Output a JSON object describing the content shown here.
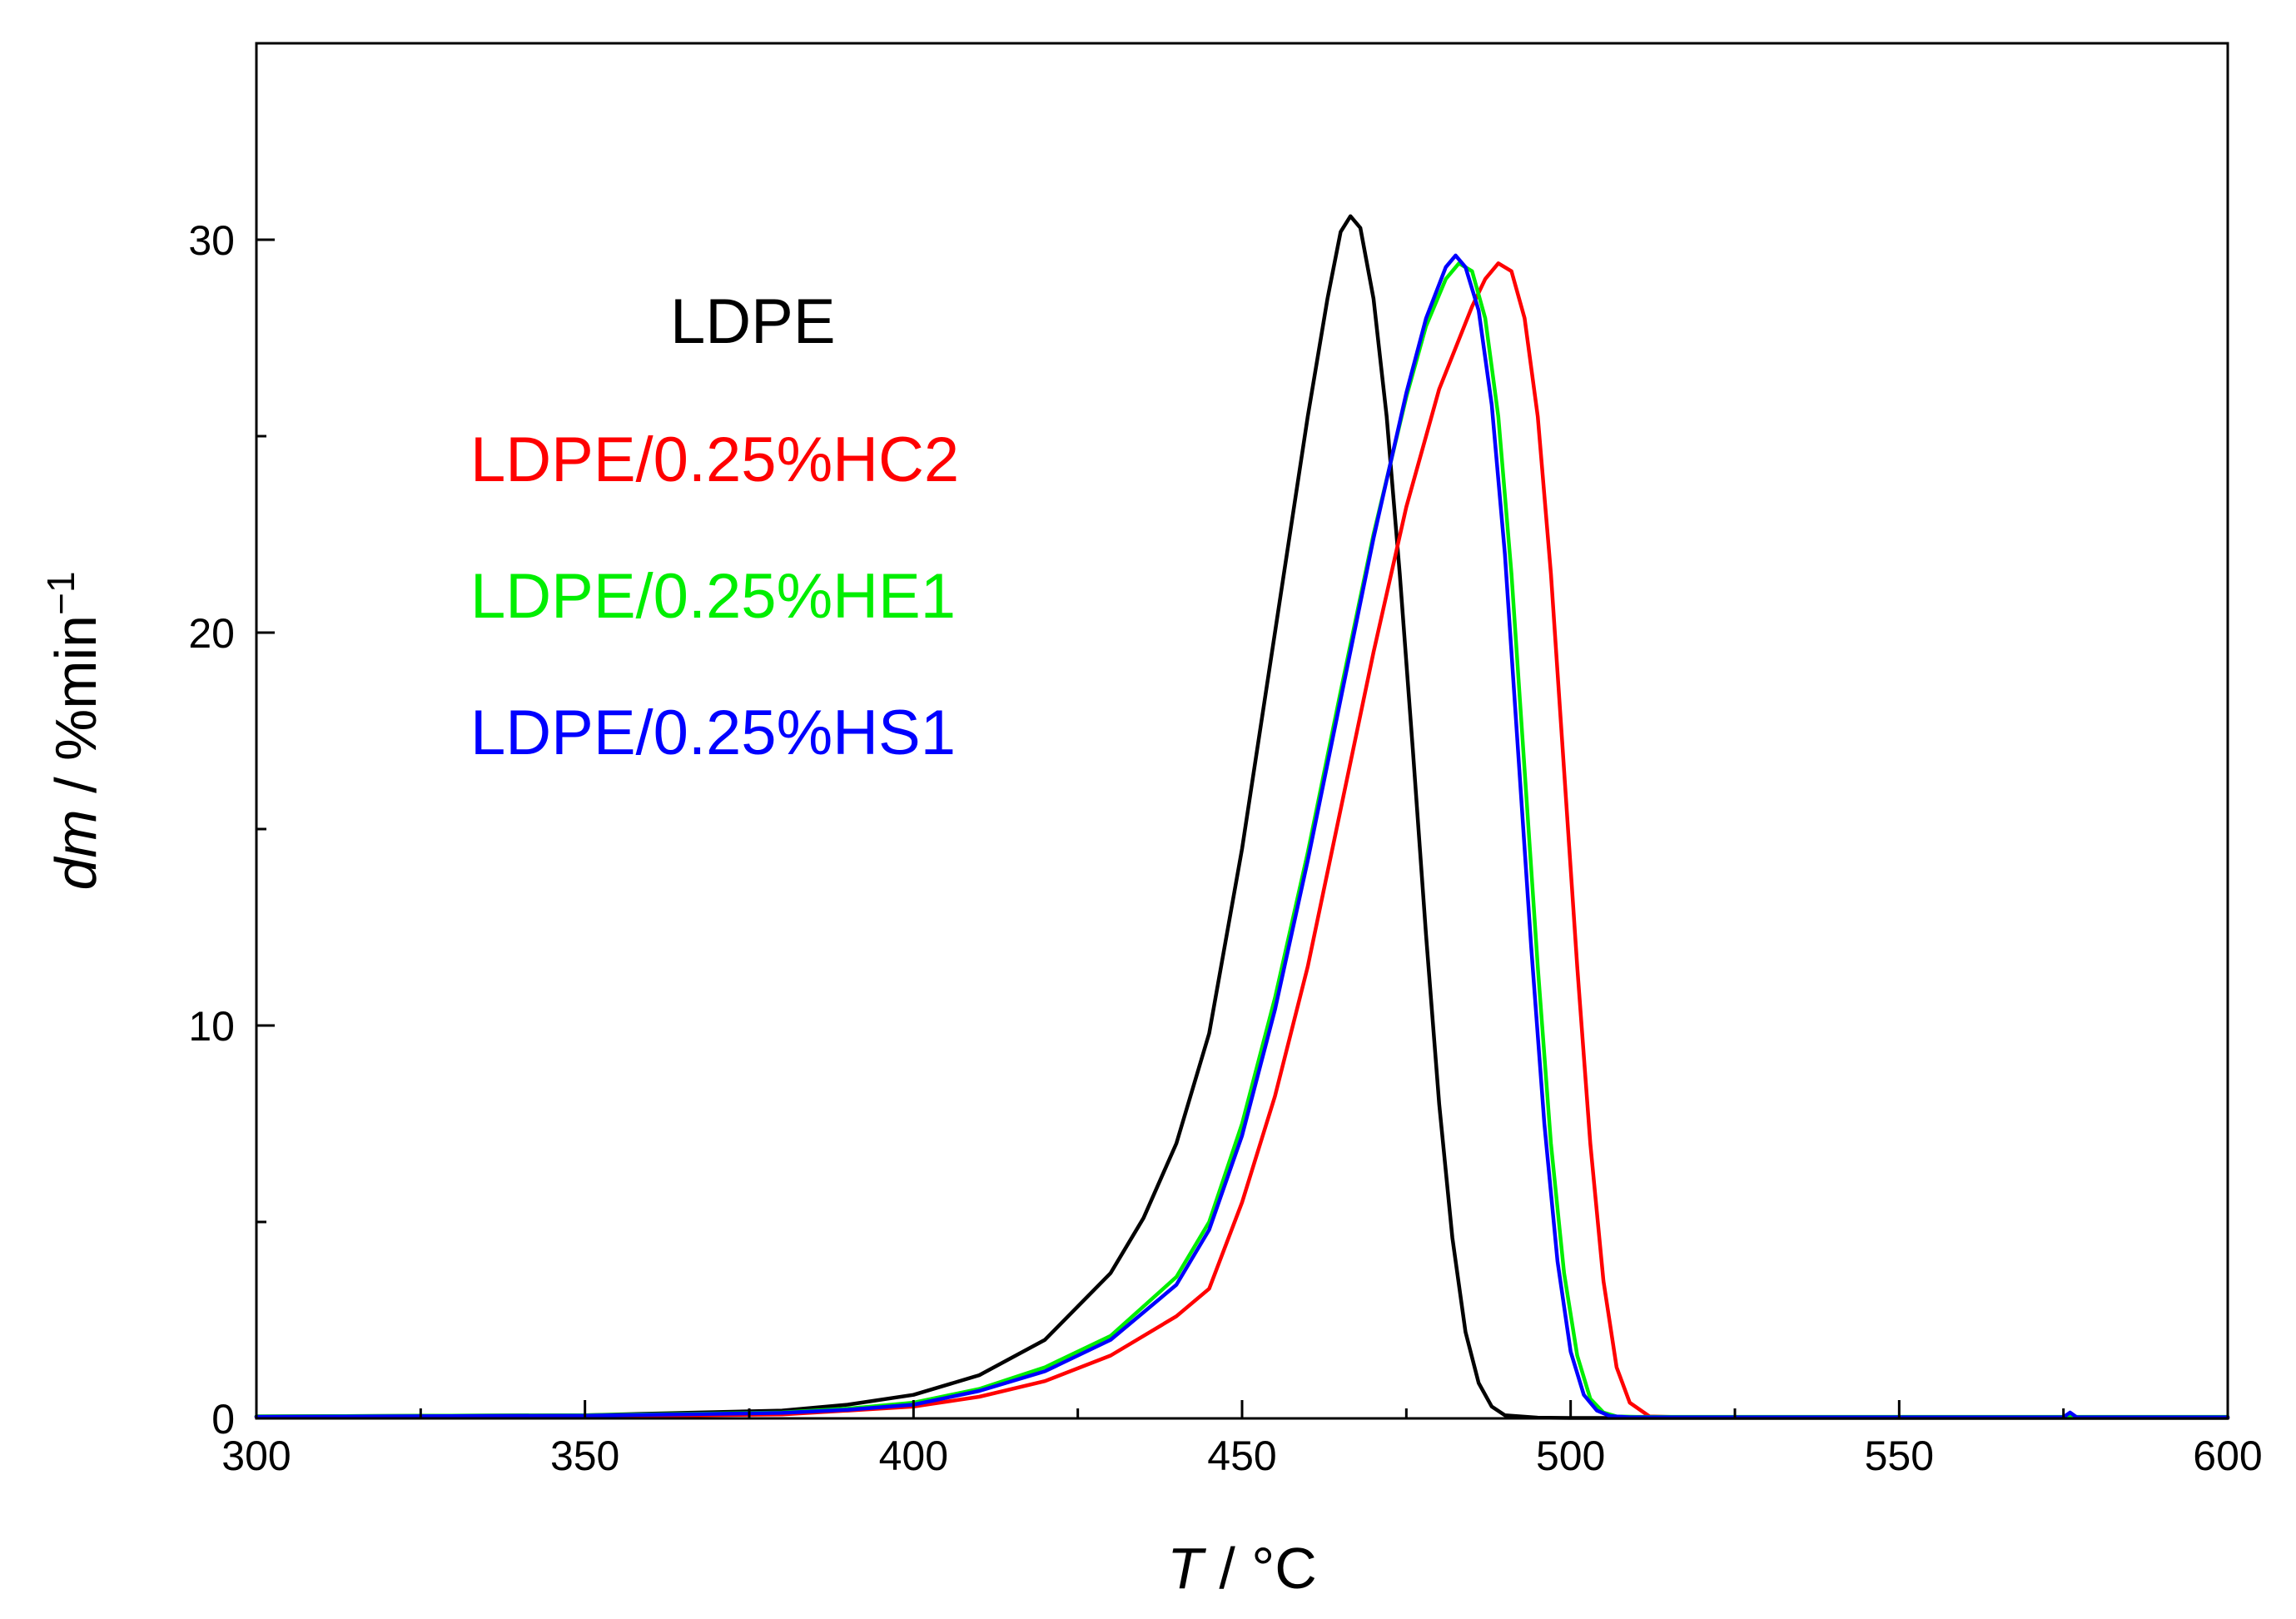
{
  "chart_data": {
    "type": "line",
    "title": "",
    "xlabel": {
      "italic": "T",
      "rest": " / °C"
    },
    "ylabel": {
      "italic": "dm",
      "rest": " / %min",
      "sup": "−1"
    },
    "xlim": [
      300,
      600
    ],
    "ylim": [
      0,
      35
    ],
    "xticks": [
      300,
      350,
      400,
      450,
      500,
      550,
      600
    ],
    "xtick_labels": [
      "300",
      "350",
      "400",
      "450",
      "500",
      "550",
      "600"
    ],
    "xminor": [
      325,
      375,
      425,
      475,
      525,
      575
    ],
    "yticks": [
      0,
      10,
      20,
      30
    ],
    "ytick_labels": [
      "0",
      "10",
      "20",
      "30"
    ],
    "yminor": [
      5,
      15,
      25
    ],
    "grid": false,
    "legend_position": "upper-left-center",
    "series": [
      {
        "name": "LDPE",
        "color": "#000000",
        "x": [
          300,
          350,
          380,
          390,
          400,
          410,
          420,
          430,
          435,
          440,
          445,
          450,
          455,
          460,
          463,
          465,
          466.5,
          468,
          470,
          472,
          474,
          476,
          478,
          480,
          482,
          484,
          486,
          488,
          490,
          495,
          500,
          550,
          600
        ],
        "y": [
          0.05,
          0.08,
          0.2,
          0.35,
          0.6,
          1.1,
          2.0,
          3.7,
          5.1,
          7.0,
          9.8,
          14.5,
          20.0,
          25.5,
          28.5,
          30.2,
          30.6,
          30.3,
          28.5,
          25.5,
          21.5,
          17.0,
          12.3,
          8.0,
          4.6,
          2.2,
          0.9,
          0.3,
          0.08,
          0.02,
          0.01,
          0.01,
          0.01
        ]
      },
      {
        "name": "LDPE/0.25%HC2",
        "color": "#ff0000",
        "x": [
          300,
          350,
          380,
          390,
          400,
          410,
          420,
          430,
          440,
          445,
          450,
          455,
          460,
          465,
          470,
          475,
          480,
          485,
          487,
          489,
          491,
          493,
          495,
          497,
          499,
          501,
          503,
          505,
          507,
          509,
          512,
          520,
          550,
          600
        ],
        "y": [
          0.03,
          0.05,
          0.1,
          0.2,
          0.3,
          0.55,
          0.95,
          1.6,
          2.6,
          3.3,
          5.5,
          8.2,
          11.5,
          15.5,
          19.5,
          23.2,
          26.2,
          28.3,
          29.0,
          29.4,
          29.2,
          28.0,
          25.5,
          21.5,
          16.5,
          11.5,
          7.0,
          3.5,
          1.3,
          0.4,
          0.05,
          0.02,
          0.02,
          0.02
        ]
      },
      {
        "name": "LDPE/0.25%HE1",
        "color": "#00ee00",
        "x": [
          300,
          350,
          380,
          390,
          400,
          410,
          420,
          430,
          440,
          445,
          450,
          455,
          460,
          465,
          470,
          475,
          478,
          481,
          483,
          485,
          487,
          489,
          491,
          493,
          495,
          497,
          499,
          501,
          503,
          505,
          507,
          510,
          520,
          550,
          600
        ],
        "y": [
          0.05,
          0.08,
          0.15,
          0.25,
          0.4,
          0.75,
          1.3,
          2.1,
          3.6,
          5.0,
          7.5,
          10.7,
          14.4,
          18.5,
          22.5,
          26.0,
          27.8,
          29.0,
          29.4,
          29.2,
          28.0,
          25.5,
          21.5,
          16.5,
          11.5,
          7.0,
          3.7,
          1.6,
          0.5,
          0.15,
          0.05,
          0.04,
          0.04,
          0.04,
          0.04
        ]
      },
      {
        "name": "LDPE/0.25%HS1",
        "color": "#0000ff",
        "x": [
          300,
          350,
          380,
          390,
          400,
          410,
          420,
          430,
          440,
          445,
          450,
          455,
          460,
          465,
          470,
          475,
          478,
          481,
          482.5,
          484,
          486,
          488,
          490,
          492,
          494,
          496,
          498,
          500,
          502,
          504,
          506,
          509,
          520,
          550,
          575,
          576,
          577,
          600
        ],
        "y": [
          0.04,
          0.07,
          0.14,
          0.22,
          0.35,
          0.7,
          1.2,
          2.0,
          3.4,
          4.8,
          7.2,
          10.4,
          14.2,
          18.3,
          22.4,
          26.1,
          28.0,
          29.3,
          29.6,
          29.3,
          28.2,
          25.8,
          22.0,
          17.0,
          12.0,
          7.5,
          4.0,
          1.7,
          0.6,
          0.2,
          0.06,
          0.03,
          0.03,
          0.03,
          0.03,
          0.15,
          0.03,
          0.03
        ]
      }
    ]
  }
}
